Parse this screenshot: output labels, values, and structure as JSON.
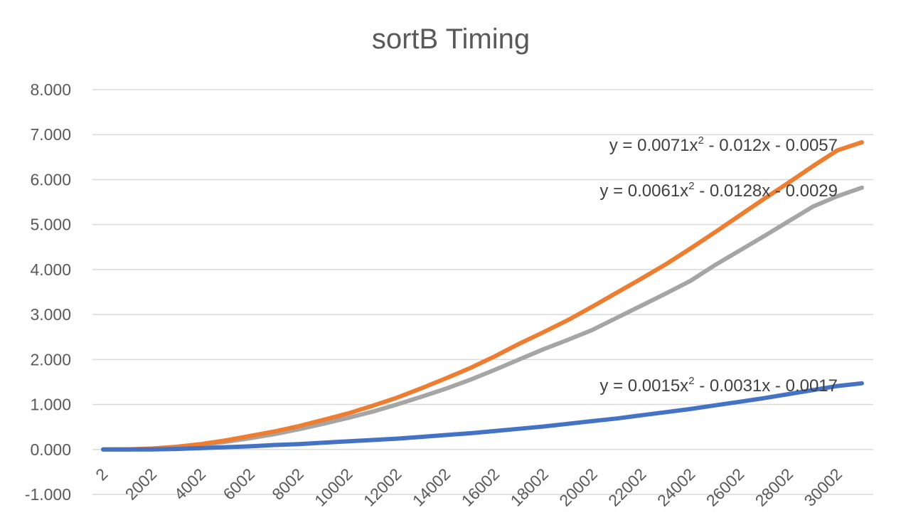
{
  "chart_data": {
    "type": "line",
    "title": "sortB Timing",
    "xlabel": "",
    "ylabel": "",
    "ylim": [
      -1,
      8
    ],
    "yticks": [
      "-1.000",
      "0.000",
      "1.000",
      "2.000",
      "3.000",
      "4.000",
      "5.000",
      "6.000",
      "7.000",
      "8.000"
    ],
    "x_tick_labels": [
      "2",
      "2002",
      "4002",
      "6002",
      "8002",
      "10002",
      "12002",
      "14002",
      "16002",
      "18002",
      "20002",
      "22002",
      "24002",
      "26002",
      "28002",
      "30002"
    ],
    "x": [
      2,
      1002,
      2002,
      3002,
      4002,
      5002,
      6002,
      7002,
      8002,
      9002,
      10002,
      11002,
      12002,
      13002,
      14002,
      15002,
      16002,
      17002,
      18002,
      19002,
      20002,
      21002,
      22002,
      23002,
      24002,
      25002,
      26002,
      27002,
      28002,
      29002,
      30002,
      31002
    ],
    "grid": true,
    "legend": "none",
    "series": [
      {
        "color": "#ed7d31",
        "values": [
          0.0,
          0.0,
          0.02,
          0.06,
          0.12,
          0.2,
          0.3,
          0.4,
          0.52,
          0.66,
          0.8,
          0.97,
          1.15,
          1.36,
          1.58,
          1.81,
          2.07,
          2.35,
          2.61,
          2.88,
          3.18,
          3.49,
          3.8,
          4.12,
          4.47,
          4.83,
          5.2,
          5.57,
          5.93,
          6.3,
          6.65,
          6.83
        ]
      },
      {
        "color": "#a5a5a5",
        "values": [
          0.0,
          0.0,
          0.02,
          0.05,
          0.1,
          0.17,
          0.25,
          0.34,
          0.45,
          0.57,
          0.7,
          0.84,
          1.0,
          1.17,
          1.35,
          1.55,
          1.77,
          2.0,
          2.23,
          2.44,
          2.66,
          2.93,
          3.2,
          3.47,
          3.75,
          4.1,
          4.42,
          4.74,
          5.07,
          5.4,
          5.63,
          5.82
        ]
      },
      {
        "color": "#4472c4",
        "values": [
          0.0,
          0.0,
          0.0,
          0.01,
          0.03,
          0.05,
          0.07,
          0.1,
          0.12,
          0.15,
          0.18,
          0.21,
          0.24,
          0.28,
          0.32,
          0.36,
          0.41,
          0.46,
          0.51,
          0.57,
          0.63,
          0.69,
          0.76,
          0.83,
          0.9,
          0.98,
          1.06,
          1.14,
          1.23,
          1.32,
          1.41,
          1.47
        ]
      }
    ],
    "trendline_equations": [
      {
        "color": "#ed7d31",
        "pre": "y = 0.0071x",
        "sup": "2",
        "post": " - 0.012x - 0.0057"
      },
      {
        "color": "#a5a5a5",
        "pre": "y = 0.0061x",
        "sup": "2",
        "post": " - 0.0128x - 0.0029"
      },
      {
        "color": "#4472c4",
        "pre": "y = 0.0015x",
        "sup": "2",
        "post": " - 0.0031x - 0.0017"
      }
    ]
  }
}
